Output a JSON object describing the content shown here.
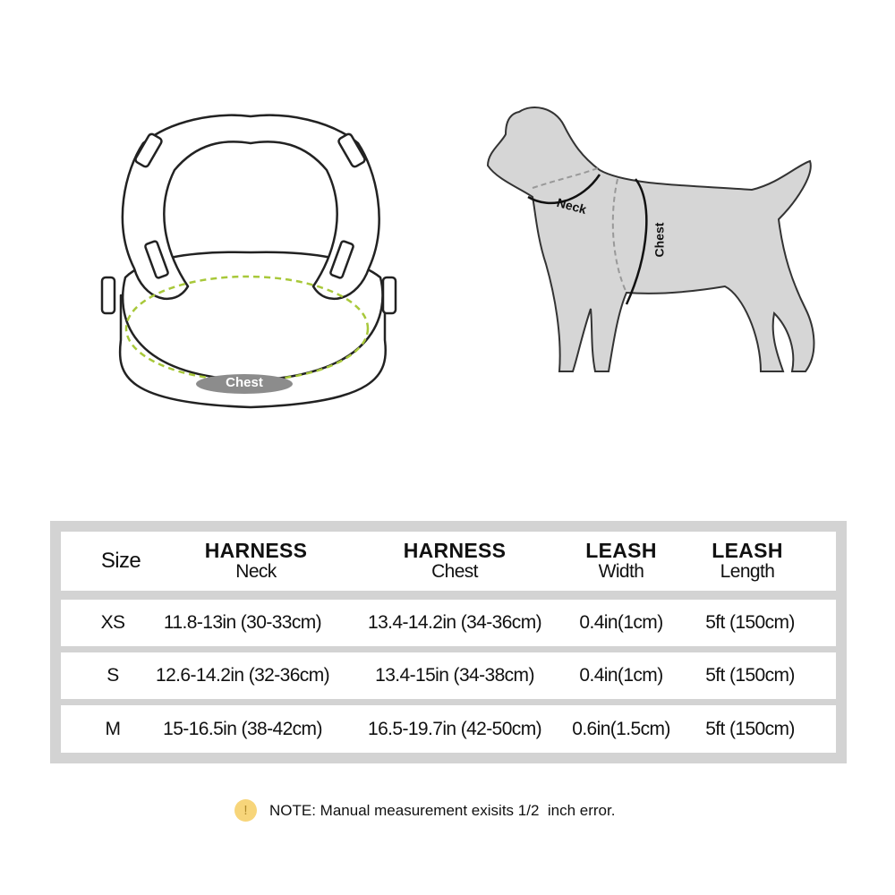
{
  "harness_figure": {
    "chest_label": "Chest",
    "chest_line_color": "#a8c83a"
  },
  "dog_figure": {
    "neck_label": "Neck",
    "chest_label": "Chest",
    "body_color": "#d6d6d6"
  },
  "size_table": {
    "headers": [
      {
        "bold": "",
        "sub": "Size"
      },
      {
        "bold": "HARNESS",
        "sub": "Neck"
      },
      {
        "bold": "HARNESS",
        "sub": "Chest"
      },
      {
        "bold": "LEASH",
        "sub": "Width"
      },
      {
        "bold": "LEASH",
        "sub": "Length"
      }
    ],
    "rows": [
      [
        "XS",
        "11.8-13in (30-33cm)",
        "13.4-14.2in (34-36cm)",
        "0.4in(1cm)",
        "5ft (150cm)"
      ],
      [
        "S",
        "12.6-14.2in (32-36cm)",
        "13.4-15in (34-38cm)",
        "0.4in(1cm)",
        "5ft (150cm)"
      ],
      [
        "M",
        "15-16.5in (38-42cm)",
        "16.5-19.7in (42-50cm)",
        "0.6in(1.5cm)",
        "5ft (150cm)"
      ]
    ]
  },
  "note": {
    "icon": "exclamation-icon",
    "text": "NOTE: Manual measurement exisits 1/2  inch error."
  }
}
